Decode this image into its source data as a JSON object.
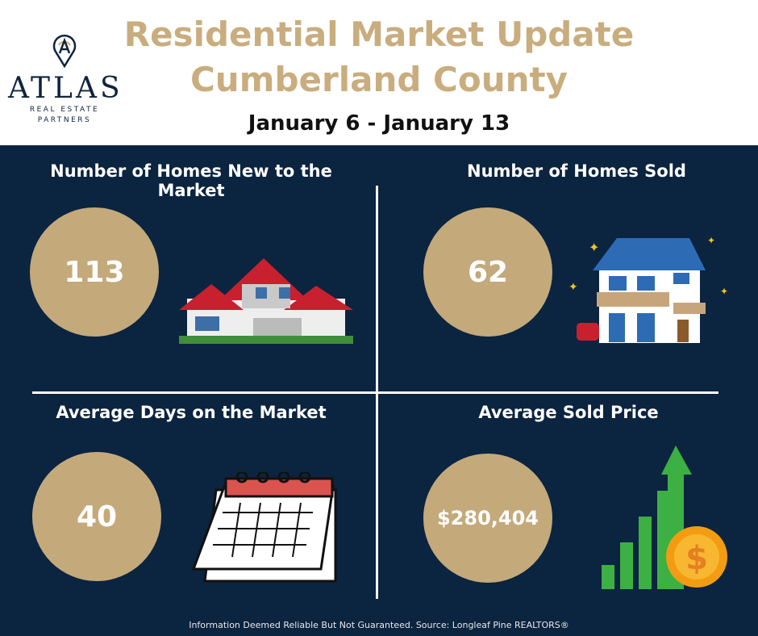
{
  "logo": {
    "word": "ATLAS",
    "subtitle_line1": "REAL ESTATE",
    "subtitle_line2": "PARTNERS",
    "icon": "location-pin-icon"
  },
  "header": {
    "title_line1": "Residential Market Update",
    "title_line2": "Cumberland County",
    "date_range": "January 6 - January 13"
  },
  "stats": [
    {
      "label": "Number of Homes New to the Market",
      "value": "113",
      "icon": "house-icon"
    },
    {
      "label": "Number of Homes Sold",
      "value": "62",
      "icon": "sold-house-icon"
    },
    {
      "label": "Average Days on the Market",
      "value": "40",
      "icon": "calendar-icon"
    },
    {
      "label": "Average Sold Price",
      "value": "$280,404",
      "icon": "price-growth-chart-icon"
    }
  ],
  "colors": {
    "navy": "#0b2440",
    "gold": "#c4a97a",
    "title_gold": "#c9ad7e"
  },
  "footer": {
    "text": "Information Deemed Reliable But Not Guaranteed. Source: Longleaf Pine REALTORS®"
  }
}
